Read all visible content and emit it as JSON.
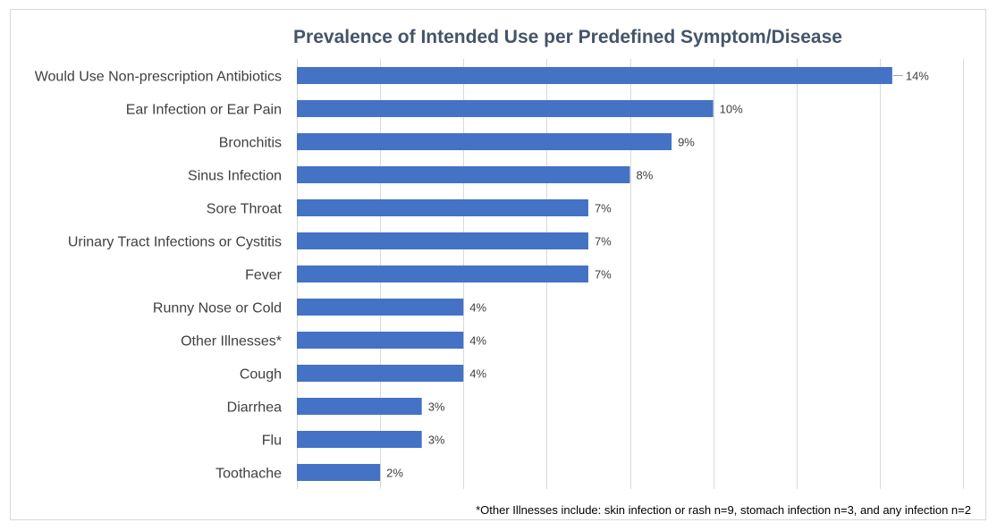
{
  "chart_data": {
    "type": "bar",
    "orientation": "horizontal",
    "title": "Prevalence of Intended Use per Predefined Symptom/Disease",
    "categories": [
      "Would Use Non-prescription Antibiotics",
      "Ear Infection or Ear Pain",
      "Bronchitis",
      "Sinus Infection",
      "Sore Throat",
      "Urinary Tract Infections or Cystitis",
      "Fever",
      "Runny Nose or Cold",
      "Other Illnesses*",
      "Cough",
      "Diarrhea",
      "Flu",
      "Toothache"
    ],
    "values": [
      14.3,
      10,
      9,
      8,
      7,
      7,
      7,
      4,
      4,
      4,
      3,
      3,
      2
    ],
    "data_labels": [
      "14%",
      "10%",
      "9%",
      "8%",
      "7%",
      "7%",
      "7%",
      "4%",
      "4%",
      "4%",
      "3%",
      "3%",
      "2%"
    ],
    "xlim": [
      0,
      16
    ],
    "grid": true,
    "legend": false,
    "bar_color": "#4472c4",
    "footnote": "*Other Illnesses include: skin infection or rash n=9, stomach infection n=3, and any infection n=2"
  }
}
